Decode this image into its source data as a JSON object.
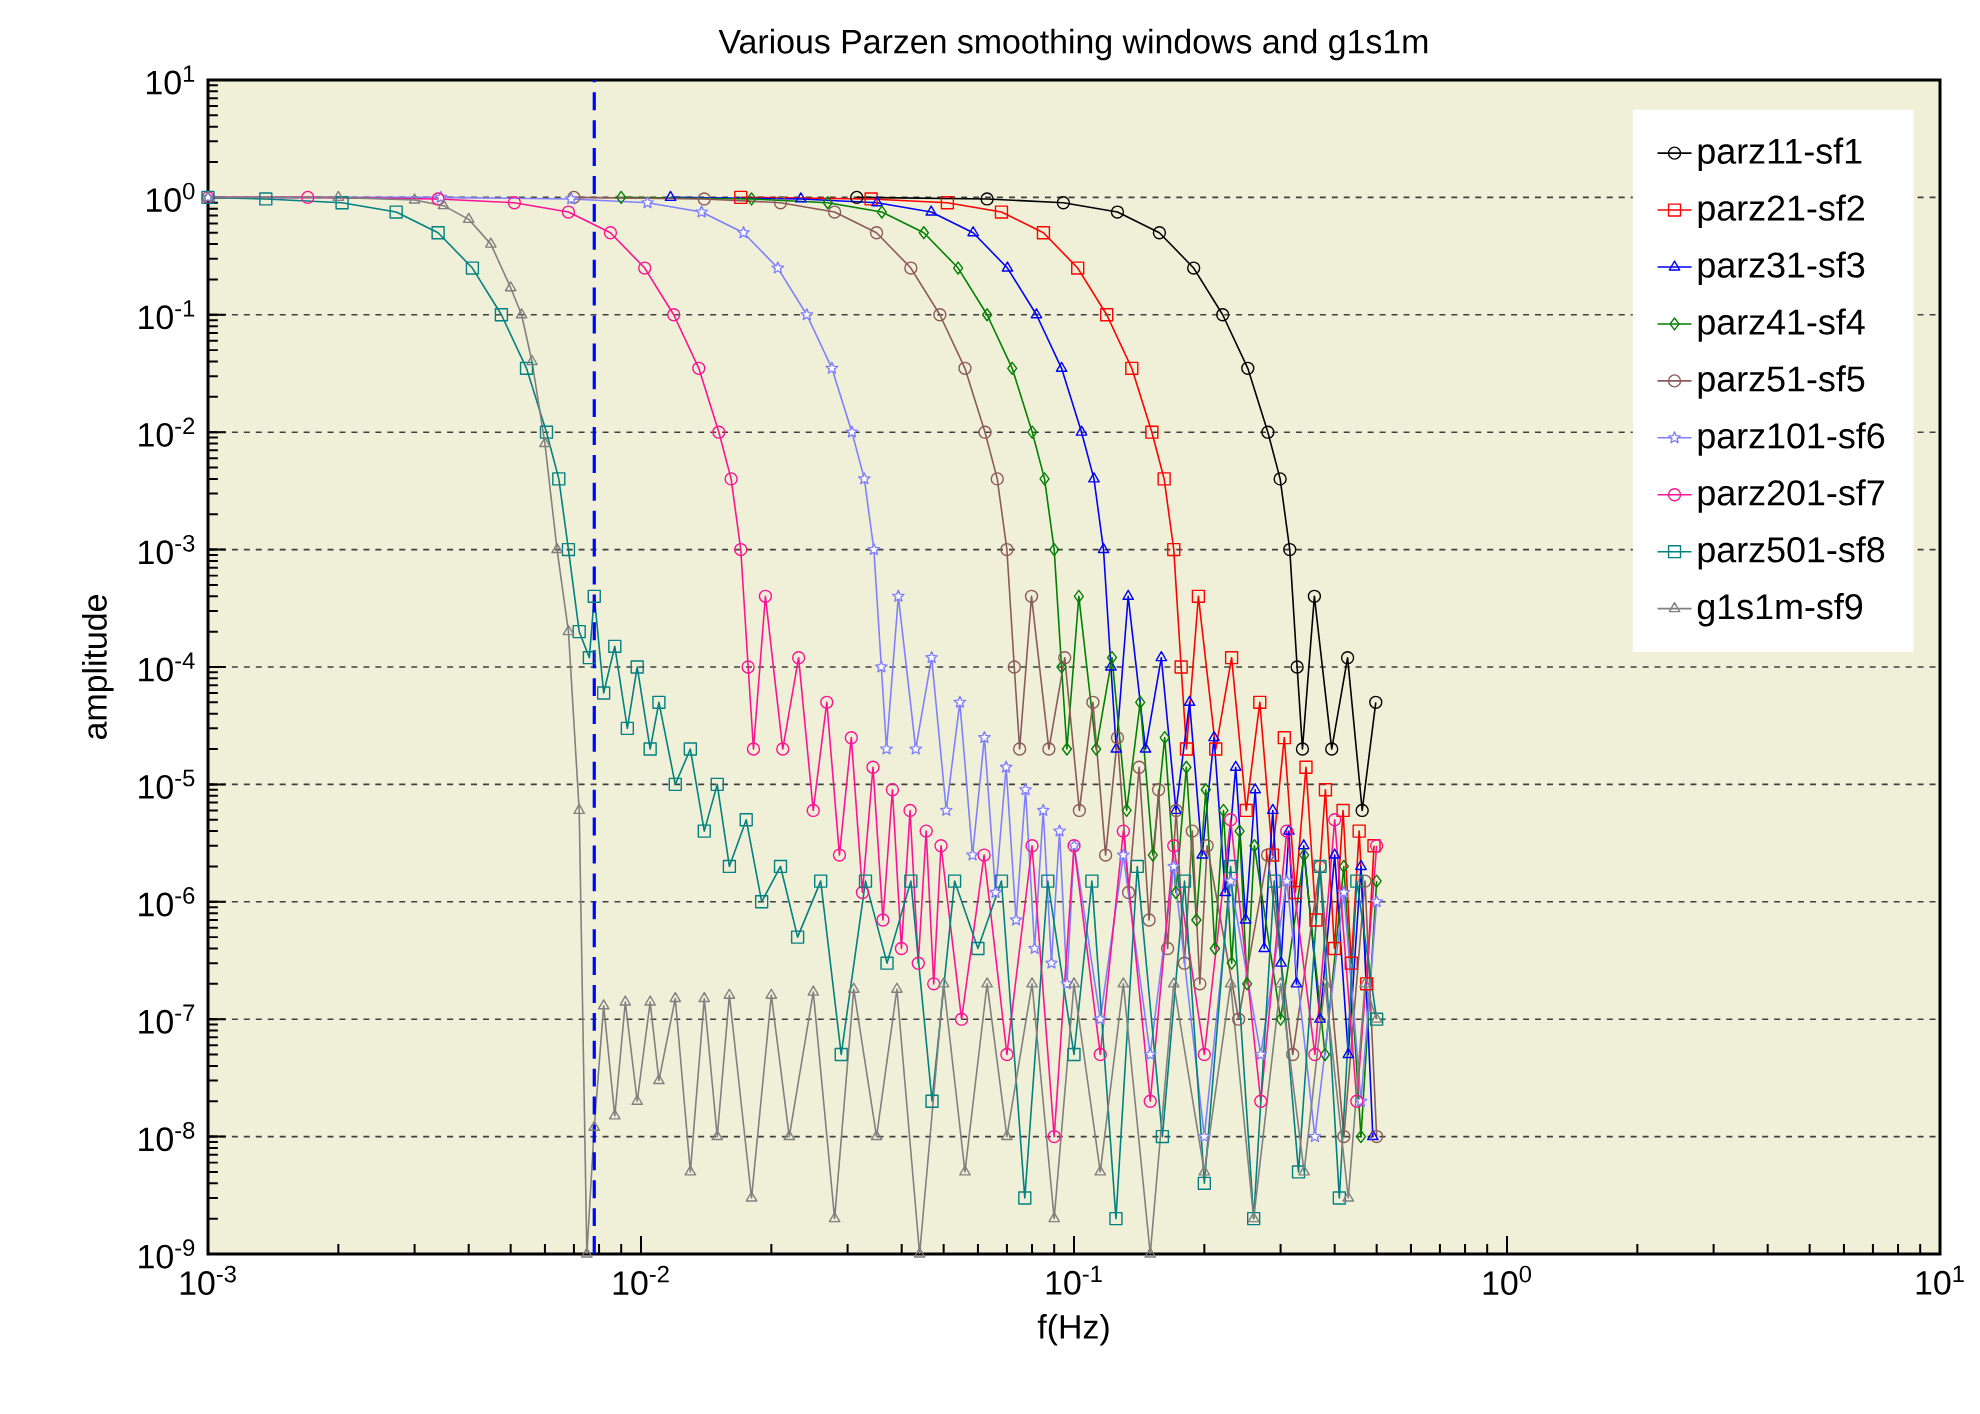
{
  "chart_data": {
    "type": "line",
    "title": "Various Parzen smoothing windows and g1s1m",
    "xlabel": "f(Hz)",
    "ylabel": "amplitude",
    "log": "xy",
    "grid": "y",
    "legend": "top right",
    "xlim": [
      0.001,
      10
    ],
    "ylim": [
      1e-09,
      10
    ],
    "xticks": [
      {
        "value": 0.001,
        "label": "10$^{-3}$"
      },
      {
        "value": 0.01,
        "label": "10$^{-2}$"
      },
      {
        "value": 0.1,
        "label": "10$^{-1}$"
      },
      {
        "value": 1,
        "label": "10$^{0}$"
      },
      {
        "value": 10,
        "label": "10$^{1}$"
      }
    ],
    "yticks": [
      {
        "value": 1e-09,
        "label": "10$^{-9}$"
      },
      {
        "value": 1e-08,
        "label": "10$^{-8}$"
      },
      {
        "value": 1e-07,
        "label": "10$^{-7}$"
      },
      {
        "value": 1e-06,
        "label": "10$^{-6}$"
      },
      {
        "value": 1e-05,
        "label": "10$^{-5}$"
      },
      {
        "value": 0.0001,
        "label": "10$^{-4}$"
      },
      {
        "value": 0.001,
        "label": "10$^{-3}$"
      },
      {
        "value": 0.01,
        "label": "10$^{-2}$"
      },
      {
        "value": 0.1,
        "label": "10$^{-1}$"
      },
      {
        "value": 1,
        "label": "10$^{0}$"
      },
      {
        "value": 10,
        "label": "10$^{1}$"
      }
    ],
    "ref_lines": [
      {
        "axis": "x",
        "value": 0.0078,
        "color": "#0000ff",
        "line_style": "dashed"
      }
    ],
    "series": [
      {
        "name": "parz11-sf1",
        "color": "#000000",
        "marker": "circle",
        "x": [
          0.0315,
          0.063,
          0.0945,
          0.126,
          0.1575,
          0.189,
          0.2205,
          0.252,
          0.2804,
          0.2993,
          0.315,
          0.3276,
          0.337,
          0.3591,
          0.3938,
          0.4284,
          0.463,
          0.4977
        ],
        "values": [
          1,
          0.97,
          0.9,
          0.75,
          0.5,
          0.25,
          0.1,
          0.035,
          0.01,
          0.004,
          0.001,
          0.0001,
          2e-05,
          0.0004,
          2e-05,
          0.00012,
          6e-06,
          5e-05
        ]
      },
      {
        "name": "parz21-sf2",
        "color": "#ff0000",
        "marker": "square",
        "x": [
          0.017,
          0.034,
          0.051,
          0.068,
          0.085,
          0.102,
          0.119,
          0.136,
          0.1513,
          0.1615,
          0.17,
          0.1768,
          0.1819,
          0.1938,
          0.2125,
          0.2312,
          0.2499,
          0.2686,
          0.2873,
          0.306,
          0.3247,
          0.3434,
          0.3621,
          0.3808,
          0.3995,
          0.4182,
          0.4369,
          0.4556,
          0.4743,
          0.493
        ],
        "values": [
          1,
          0.97,
          0.9,
          0.75,
          0.5,
          0.25,
          0.1,
          0.035,
          0.01,
          0.004,
          0.001,
          0.0001,
          2e-05,
          0.0004,
          2e-05,
          0.00012,
          6e-06,
          5e-05,
          2.5e-06,
          2.5e-05,
          1.2e-06,
          1.4e-05,
          7e-07,
          9e-06,
          4e-07,
          6e-06,
          3e-07,
          4e-06,
          2e-07,
          3e-06
        ]
      },
      {
        "name": "parz31-sf3",
        "color": "#0000ff",
        "marker": "triangle",
        "x": [
          0.0117,
          0.0234,
          0.0351,
          0.0468,
          0.0585,
          0.0702,
          0.0819,
          0.0936,
          0.1041,
          0.1112,
          0.117,
          0.1217,
          0.1252,
          0.1334,
          0.1463,
          0.1591,
          0.172,
          0.1849,
          0.1977,
          0.2106,
          0.2235,
          0.2363,
          0.2492,
          0.2621,
          0.275,
          0.2878,
          0.3007,
          0.3136,
          0.3264,
          0.3393,
          0.37,
          0.4,
          0.43,
          0.46,
          0.49
        ],
        "values": [
          1,
          0.97,
          0.9,
          0.75,
          0.5,
          0.25,
          0.1,
          0.035,
          0.01,
          0.004,
          0.001,
          0.0001,
          2e-05,
          0.0004,
          2e-05,
          0.00012,
          6e-06,
          5e-05,
          2.5e-06,
          2.5e-05,
          1.2e-06,
          1.4e-05,
          7e-07,
          9e-06,
          4e-07,
          6e-06,
          3e-07,
          4e-06,
          2e-07,
          3e-06,
          1e-07,
          2.5e-06,
          5e-08,
          2e-06,
          1e-08
        ]
      },
      {
        "name": "parz41-sf4",
        "color": "#008000",
        "marker": "diamond",
        "x": [
          0.009,
          0.018,
          0.027,
          0.036,
          0.045,
          0.054,
          0.063,
          0.072,
          0.0801,
          0.0855,
          0.09,
          0.0936,
          0.0963,
          0.1026,
          0.1125,
          0.1224,
          0.1323,
          0.1422,
          0.1521,
          0.162,
          0.1719,
          0.1818,
          0.1917,
          0.2016,
          0.2115,
          0.2214,
          0.2313,
          0.2412,
          0.2511,
          0.261,
          0.3,
          0.34,
          0.38,
          0.42,
          0.46,
          0.5
        ],
        "values": [
          1,
          0.97,
          0.9,
          0.75,
          0.5,
          0.25,
          0.1,
          0.035,
          0.01,
          0.004,
          0.001,
          0.0001,
          2e-05,
          0.0004,
          2e-05,
          0.00012,
          6e-06,
          5e-05,
          2.5e-06,
          2.5e-05,
          1.2e-06,
          1.4e-05,
          7e-07,
          9e-06,
          4e-07,
          6e-06,
          3e-07,
          4e-06,
          2e-07,
          3e-06,
          1e-07,
          2.5e-06,
          5e-08,
          2e-06,
          1e-08,
          1.5e-06
        ]
      },
      {
        "name": "parz51-sf5",
        "color": "#8b5a5a",
        "marker": "circle",
        "x": [
          0.007,
          0.014,
          0.021,
          0.028,
          0.035,
          0.042,
          0.049,
          0.056,
          0.0623,
          0.0665,
          0.07,
          0.0728,
          0.0749,
          0.0798,
          0.0875,
          0.0952,
          0.1029,
          0.1106,
          0.1183,
          0.126,
          0.1337,
          0.1414,
          0.1491,
          0.1568,
          0.1645,
          0.1722,
          0.1799,
          0.1876,
          0.1953,
          0.203,
          0.24,
          0.28,
          0.32,
          0.37,
          0.42,
          0.47,
          0.5
        ],
        "values": [
          1,
          0.97,
          0.9,
          0.75,
          0.5,
          0.25,
          0.1,
          0.035,
          0.01,
          0.004,
          0.001,
          0.0001,
          2e-05,
          0.0004,
          2e-05,
          0.00012,
          6e-06,
          5e-05,
          2.5e-06,
          2.5e-05,
          1.2e-06,
          1.4e-05,
          7e-07,
          9e-06,
          4e-07,
          6e-06,
          3e-07,
          4e-06,
          2e-07,
          3e-06,
          1e-07,
          2.5e-06,
          5e-08,
          2e-06,
          1e-08,
          1.5e-06,
          1e-08
        ]
      },
      {
        "name": "parz101-sf6",
        "color": "#8080ff",
        "marker": "star",
        "x": [
          0.001,
          0.00345,
          0.0069,
          0.01035,
          0.0138,
          0.01725,
          0.0207,
          0.02415,
          0.0276,
          0.0307,
          0.0328,
          0.0345,
          0.0359,
          0.0369,
          0.0393,
          0.0431,
          0.0469,
          0.0507,
          0.0545,
          0.0583,
          0.0621,
          0.0659,
          0.0697,
          0.0735,
          0.0773,
          0.0811,
          0.0849,
          0.0887,
          0.0926,
          0.0963,
          0.1001,
          0.115,
          0.13,
          0.15,
          0.17,
          0.2,
          0.23,
          0.27,
          0.31,
          0.36,
          0.42,
          0.46,
          0.5
        ],
        "values": [
          1,
          1,
          0.97,
          0.9,
          0.75,
          0.5,
          0.25,
          0.1,
          0.035,
          0.01,
          0.004,
          0.001,
          0.0001,
          2e-05,
          0.0004,
          2e-05,
          0.00012,
          6e-06,
          5e-05,
          2.5e-06,
          2.5e-05,
          1.2e-06,
          1.4e-05,
          7e-07,
          9e-06,
          4e-07,
          6e-06,
          3e-07,
          4e-06,
          2e-07,
          3e-06,
          1e-07,
          2.5e-06,
          5e-08,
          2e-06,
          1e-08,
          1.5e-06,
          5e-08,
          1.5e-06,
          1e-08,
          1.2e-06,
          2e-08,
          1e-06
        ]
      },
      {
        "name": "parz201-sf7",
        "color": "#ff1493",
        "marker": "circle",
        "x": [
          0.001,
          0.0017,
          0.0034,
          0.0051,
          0.0068,
          0.0085,
          0.0102,
          0.0119,
          0.0136,
          0.01513,
          0.01615,
          0.017,
          0.01768,
          0.01819,
          0.01938,
          0.02125,
          0.02312,
          0.02499,
          0.02686,
          0.02873,
          0.0306,
          0.03247,
          0.03434,
          0.03621,
          0.03808,
          0.03995,
          0.04182,
          0.04369,
          0.04556,
          0.04743,
          0.0493,
          0.055,
          0.062,
          0.07,
          0.08,
          0.09,
          0.1,
          0.115,
          0.13,
          0.15,
          0.17,
          0.2,
          0.23,
          0.27,
          0.31,
          0.36,
          0.4,
          0.45,
          0.5
        ],
        "values": [
          1,
          1,
          0.97,
          0.9,
          0.75,
          0.5,
          0.25,
          0.1,
          0.035,
          0.01,
          0.004,
          0.001,
          0.0001,
          2e-05,
          0.0004,
          2e-05,
          0.00012,
          6e-06,
          5e-05,
          2.5e-06,
          2.5e-05,
          1.2e-06,
          1.4e-05,
          7e-07,
          9e-06,
          4e-07,
          6e-06,
          3e-07,
          4e-06,
          2e-07,
          3e-06,
          1e-07,
          2.5e-06,
          5e-08,
          3e-06,
          1e-08,
          3e-06,
          5e-08,
          4e-06,
          2e-08,
          3e-06,
          5e-08,
          5e-06,
          2e-08,
          4e-06,
          5e-08,
          5e-06,
          2e-08,
          3e-06
        ]
      },
      {
        "name": "parz501-sf8",
        "color": "#008080",
        "marker": "square",
        "x": [
          0.001,
          0.00136,
          0.00204,
          0.00272,
          0.0034,
          0.00408,
          0.00476,
          0.00544,
          0.00605,
          0.00646,
          0.0068,
          0.0072,
          0.0076,
          0.0078,
          0.0082,
          0.0087,
          0.0093,
          0.0098,
          0.0105,
          0.011,
          0.012,
          0.013,
          0.014,
          0.015,
          0.016,
          0.0175,
          0.019,
          0.021,
          0.023,
          0.026,
          0.029,
          0.033,
          0.037,
          0.042,
          0.047,
          0.053,
          0.06,
          0.068,
          0.077,
          0.087,
          0.1,
          0.11,
          0.125,
          0.14,
          0.16,
          0.18,
          0.2,
          0.23,
          0.26,
          0.29,
          0.33,
          0.37,
          0.41,
          0.45,
          0.5
        ],
        "values": [
          1,
          0.97,
          0.9,
          0.75,
          0.5,
          0.25,
          0.1,
          0.035,
          0.01,
          0.004,
          0.001,
          0.0002,
          0.00012,
          0.0004,
          6e-05,
          0.00015,
          3e-05,
          0.0001,
          2e-05,
          5e-05,
          1e-05,
          2e-05,
          4e-06,
          1e-05,
          2e-06,
          5e-06,
          1e-06,
          2e-06,
          5e-07,
          1.5e-06,
          5e-08,
          1.5e-06,
          3e-07,
          1.5e-06,
          2e-08,
          1.5e-06,
          4e-07,
          1.5e-06,
          3e-09,
          1.5e-06,
          5e-08,
          1.5e-06,
          2e-09,
          2e-06,
          1e-08,
          1.5e-06,
          4e-09,
          2e-06,
          2e-09,
          1.5e-06,
          5e-09,
          2e-06,
          3e-09,
          1.5e-06,
          1e-07
        ]
      },
      {
        "name": "g1s1m-sf9",
        "color": "#808080",
        "marker": "triangle",
        "x": [
          0.001,
          0.002,
          0.003,
          0.0035,
          0.004,
          0.0045,
          0.005,
          0.0053,
          0.0056,
          0.006,
          0.0064,
          0.0068,
          0.0072,
          0.0075,
          0.0078,
          0.0082,
          0.0087,
          0.0092,
          0.0098,
          0.0105,
          0.011,
          0.012,
          0.013,
          0.014,
          0.015,
          0.016,
          0.018,
          0.02,
          0.022,
          0.025,
          0.028,
          0.031,
          0.035,
          0.039,
          0.044,
          0.05,
          0.056,
          0.063,
          0.07,
          0.08,
          0.09,
          0.1,
          0.115,
          0.13,
          0.15,
          0.17,
          0.2,
          0.23,
          0.26,
          0.3,
          0.34,
          0.38,
          0.43,
          0.47,
          0.5
        ],
        "values": [
          1,
          1,
          0.95,
          0.85,
          0.65,
          0.4,
          0.17,
          0.1,
          0.04,
          0.008,
          0.001,
          0.0002,
          6e-06,
          1e-09,
          1.2e-08,
          1.3e-07,
          1.5e-08,
          1.4e-07,
          2e-08,
          1.4e-07,
          3e-08,
          1.5e-07,
          5e-09,
          1.5e-07,
          1e-08,
          1.6e-07,
          3e-09,
          1.6e-07,
          1e-08,
          1.7e-07,
          2e-09,
          1.8e-07,
          1e-08,
          1.8e-07,
          1e-09,
          2e-07,
          5e-09,
          2e-07,
          1e-08,
          2e-07,
          2e-09,
          2e-07,
          5e-09,
          2e-07,
          1e-09,
          2e-07,
          5e-09,
          2e-07,
          2e-09,
          2e-07,
          5e-09,
          2e-07,
          3e-09,
          2e-07,
          1e-07
        ]
      }
    ]
  }
}
